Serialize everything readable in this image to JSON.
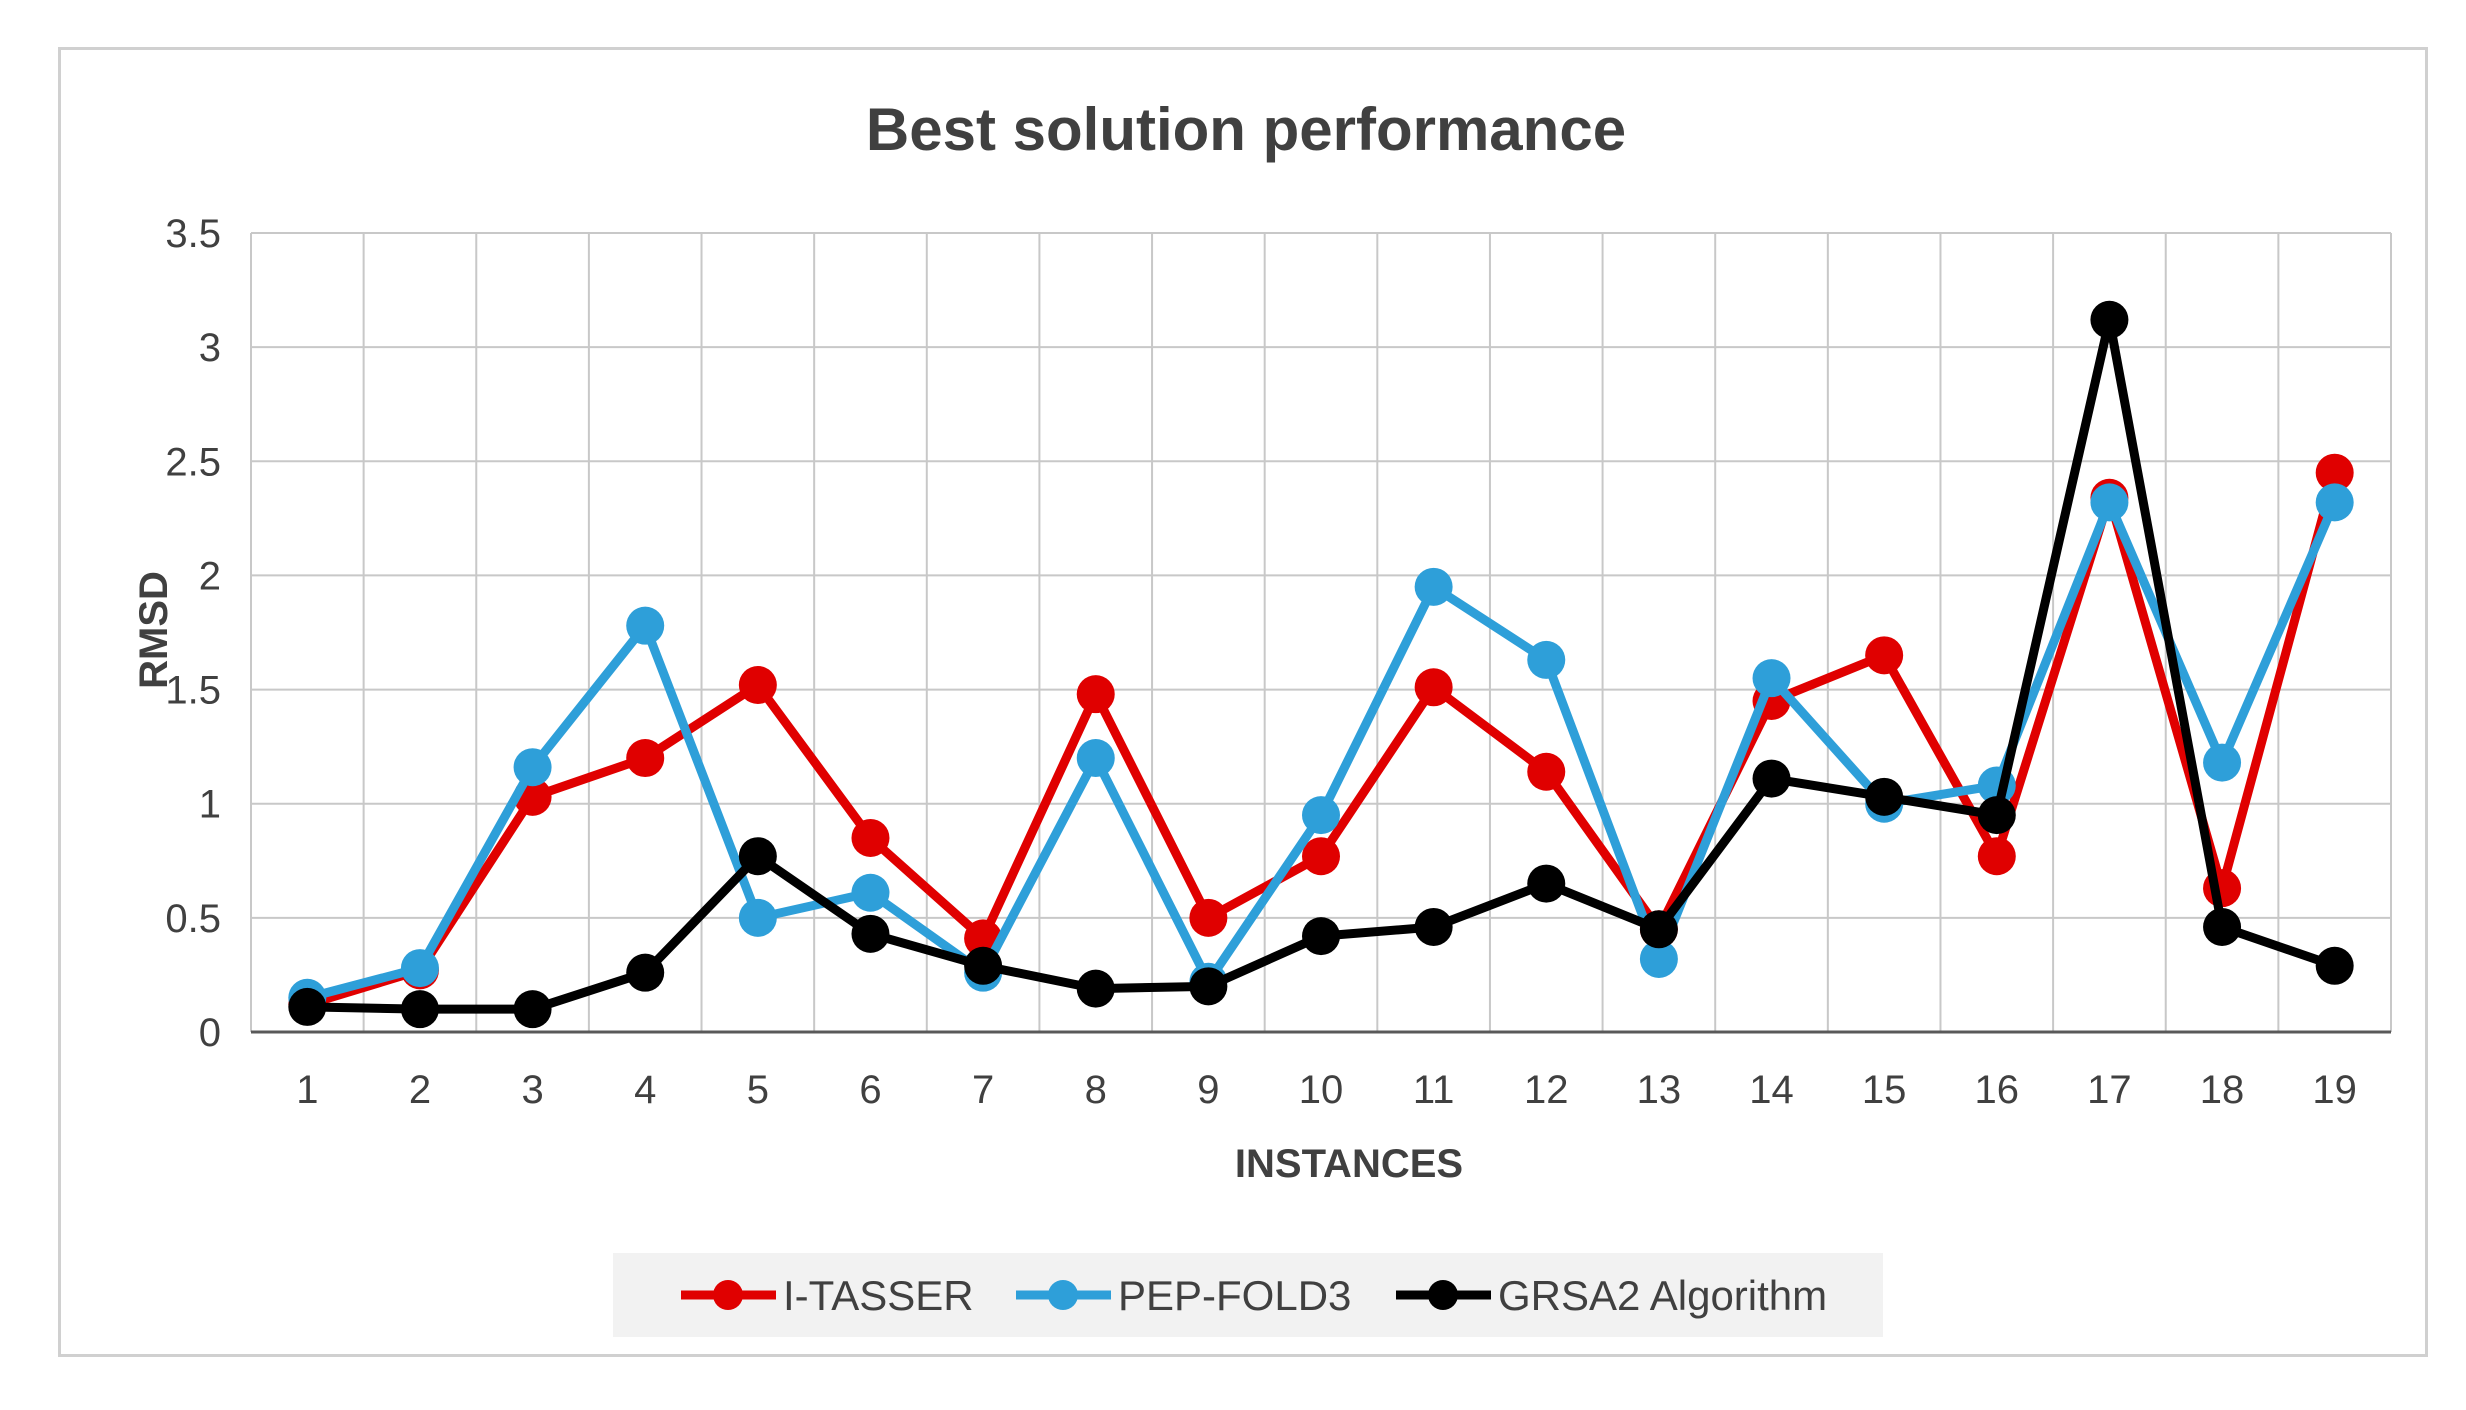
{
  "chart_data": {
    "type": "line",
    "title": "Best solution performance",
    "xlabel": "INSTANCES",
    "ylabel": "RMSD",
    "categories": [
      "1",
      "2",
      "3",
      "4",
      "5",
      "6",
      "7",
      "8",
      "9",
      "10",
      "11",
      "12",
      "13",
      "14",
      "15",
      "16",
      "17",
      "18",
      "19"
    ],
    "ylim": [
      0,
      3.5
    ],
    "yticks": [
      "0",
      "0.5",
      "1",
      "1.5",
      "2",
      "2.5",
      "3",
      "3.5"
    ],
    "grid": true,
    "legend_position": "bottom",
    "series": [
      {
        "name": "I-TASSER",
        "color": "#e00000",
        "values": [
          0.12,
          0.27,
          1.03,
          1.2,
          1.52,
          0.85,
          0.41,
          1.48,
          0.5,
          0.77,
          1.51,
          1.14,
          0.45,
          1.45,
          1.65,
          0.77,
          2.34,
          0.63,
          2.45
        ]
      },
      {
        "name": "PEP-FOLD3",
        "color": "#2e9fd9",
        "values": [
          0.15,
          0.28,
          1.16,
          1.78,
          0.5,
          0.61,
          0.26,
          1.2,
          0.22,
          0.95,
          1.95,
          1.63,
          0.32,
          1.55,
          1.0,
          1.08,
          2.32,
          1.18,
          2.32
        ]
      },
      {
        "name": "GRSA2 Algorithm",
        "color": "#000000",
        "values": [
          0.11,
          0.1,
          0.1,
          0.26,
          0.77,
          0.43,
          0.29,
          0.19,
          0.2,
          0.42,
          0.46,
          0.65,
          0.45,
          1.11,
          1.03,
          0.95,
          3.12,
          0.46,
          0.29
        ]
      }
    ]
  }
}
